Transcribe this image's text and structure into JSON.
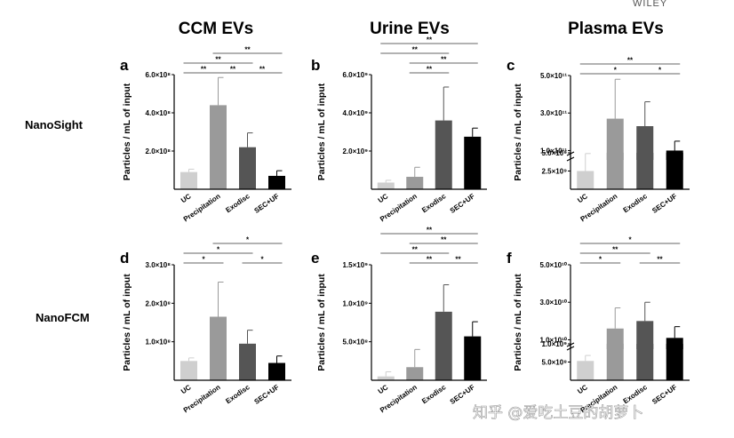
{
  "header_fragment": "WILEY",
  "watermark": "知乎 @爱吃土豆的胡萝卜",
  "columns": [
    "CCM EVs",
    "Urine EVs",
    "Plasma EVs"
  ],
  "rows": [
    "NanoSight",
    "NanoFCM"
  ],
  "y_label": "Particles / mL of input",
  "categories": [
    "UC",
    "Precipitation",
    "Exodisc",
    "SEC+UF"
  ],
  "bar_colors": [
    "#cfcfcf",
    "#9a9a9a",
    "#555555",
    "#000000"
  ],
  "chart_data": [
    {
      "type": "bar",
      "panel": "a",
      "title": "CCM EVs",
      "row": "NanoSight",
      "categories": [
        "UC",
        "Precipitation",
        "Exodisc",
        "SEC+UF"
      ],
      "values": [
        90000000,
        440000000,
        220000000,
        70000000
      ],
      "errors": [
        15000000,
        145000000,
        75000000,
        27000000
      ],
      "ylim": [
        0,
        600000000
      ],
      "scale": "linear",
      "yticks": [
        {
          "v": 200000000,
          "label": "2.0×10⁸"
        },
        {
          "v": 400000000,
          "label": "4.0×10⁸"
        },
        {
          "v": 600000000,
          "label": "6.0×10⁸"
        }
      ],
      "significance": [
        {
          "from": 0,
          "to": 1,
          "label": "**"
        },
        {
          "from": 1,
          "to": 2,
          "label": "**"
        },
        {
          "from": 2,
          "to": 3,
          "label": "**"
        },
        {
          "from": 0,
          "to": 2,
          "label": "**"
        },
        {
          "from": 1,
          "to": 3,
          "label": "**"
        }
      ]
    },
    {
      "type": "bar",
      "panel": "b",
      "title": "Urine EVs",
      "row": "NanoSight",
      "categories": [
        "UC",
        "Precipitation",
        "Exodisc",
        "SEC+UF"
      ],
      "values": [
        350000000,
        650000000,
        3600000000,
        2750000000
      ],
      "errors": [
        120000000,
        500000000,
        1750000000,
        450000000
      ],
      "ylim": [
        0,
        6000000000
      ],
      "scale": "linear",
      "yticks": [
        {
          "v": 2000000000,
          "label": "2.0×10⁹"
        },
        {
          "v": 4000000000,
          "label": "4.0×10⁹"
        },
        {
          "v": 6000000000,
          "label": "6.0×10⁹"
        }
      ],
      "significance": [
        {
          "from": 1,
          "to": 2,
          "label": "**"
        },
        {
          "from": 1,
          "to": 3,
          "label": "**"
        },
        {
          "from": 0,
          "to": 2,
          "label": "**"
        },
        {
          "from": 0,
          "to": 3,
          "label": "**"
        }
      ]
    },
    {
      "type": "bar",
      "panel": "c",
      "title": "Plasma EVs",
      "row": "NanoSight",
      "categories": [
        "UC",
        "Precipitation",
        "Exodisc",
        "SEC+UF"
      ],
      "values": [
        2500000000,
        270000000000,
        230000000000,
        100000000000
      ],
      "errors": [
        2400000000,
        210000000000,
        130000000000,
        50000000000
      ],
      "scale": "broken",
      "lower": {
        "lim": [
          0,
          5000000000
        ],
        "ticks": [
          {
            "v": 2500000000,
            "label": "2.5×10⁹"
          },
          {
            "v": 5000000000,
            "label": "5.0×10⁹"
          }
        ]
      },
      "upper": {
        "lim": [
          50000000000,
          500000000000
        ],
        "ticks": [
          {
            "v": 100000000000,
            "label": "1.0×10¹¹"
          },
          {
            "v": 300000000000,
            "label": "3.0×10¹¹"
          },
          {
            "v": 500000000000,
            "label": "5.0×10¹¹"
          }
        ]
      },
      "significance": [
        {
          "from": 2,
          "to": 3,
          "label": "*"
        },
        {
          "from": 0,
          "to": 2,
          "label": "*"
        },
        {
          "from": 0,
          "to": 3,
          "label": "**"
        }
      ]
    },
    {
      "type": "bar",
      "panel": "d",
      "title": "CCM EVs",
      "row": "NanoFCM",
      "categories": [
        "UC",
        "Precipitation",
        "Exodisc",
        "SEC+UF"
      ],
      "values": [
        50000000,
        165000000,
        95000000,
        45000000
      ],
      "errors": [
        8000000,
        90000000,
        35000000,
        18000000
      ],
      "ylim": [
        0,
        300000000
      ],
      "scale": "linear",
      "yticks": [
        {
          "v": 100000000,
          "label": "1.0×10⁸"
        },
        {
          "v": 200000000,
          "label": "2.0×10⁸"
        },
        {
          "v": 300000000,
          "label": "3.0×10⁸"
        }
      ],
      "significance": [
        {
          "from": 0,
          "to": 1,
          "label": "*"
        },
        {
          "from": 2,
          "to": 3,
          "label": "*"
        },
        {
          "from": 0,
          "to": 2,
          "label": "*"
        },
        {
          "from": 1,
          "to": 3,
          "label": "*"
        }
      ]
    },
    {
      "type": "bar",
      "panel": "e",
      "title": "Urine EVs",
      "row": "NanoFCM",
      "categories": [
        "UC",
        "Precipitation",
        "Exodisc",
        "SEC+UF"
      ],
      "values": [
        50000000,
        170000000,
        890000000,
        570000000
      ],
      "errors": [
        60000000,
        230000000,
        350000000,
        190000000
      ],
      "ylim": [
        0,
        1500000000
      ],
      "scale": "linear",
      "yticks": [
        {
          "v": 500000000,
          "label": "5.0×10⁸"
        },
        {
          "v": 1000000000,
          "label": "1.0×10⁹"
        },
        {
          "v": 1500000000,
          "label": "1.5×10⁹"
        }
      ],
      "significance": [
        {
          "from": 1,
          "to": 2,
          "label": "**"
        },
        {
          "from": 2,
          "to": 3,
          "label": "**"
        },
        {
          "from": 0,
          "to": 2,
          "label": "**"
        },
        {
          "from": 1,
          "to": 3,
          "label": "**"
        },
        {
          "from": 0,
          "to": 3,
          "label": "**"
        }
      ]
    },
    {
      "type": "bar",
      "panel": "f",
      "title": "Plasma EVs",
      "row": "NanoFCM",
      "categories": [
        "UC",
        "Precipitation",
        "Exodisc",
        "SEC+UF"
      ],
      "values": [
        530000000,
        16000000000,
        20000000000,
        11000000000
      ],
      "errors": [
        150000000,
        11000000000,
        10000000000,
        6000000000
      ],
      "scale": "broken",
      "lower": {
        "lim": [
          0,
          1000000000
        ],
        "ticks": [
          {
            "v": 500000000,
            "label": "5.0×10⁸"
          },
          {
            "v": 1000000000,
            "label": "1.0×10⁹"
          }
        ]
      },
      "upper": {
        "lim": [
          5000000000,
          50000000000
        ],
        "ticks": [
          {
            "v": 10000000000,
            "label": "1.0×10¹⁰"
          },
          {
            "v": 30000000000,
            "label": "3.0×10¹⁰"
          },
          {
            "v": 50000000000,
            "label": "5.0×10¹⁰"
          }
        ]
      },
      "significance": [
        {
          "from": 0,
          "to": 1,
          "label": "*"
        },
        {
          "from": 2,
          "to": 3,
          "label": "**"
        },
        {
          "from": 0,
          "to": 2,
          "label": "**"
        },
        {
          "from": 0,
          "to": 3,
          "label": "*"
        }
      ]
    }
  ]
}
